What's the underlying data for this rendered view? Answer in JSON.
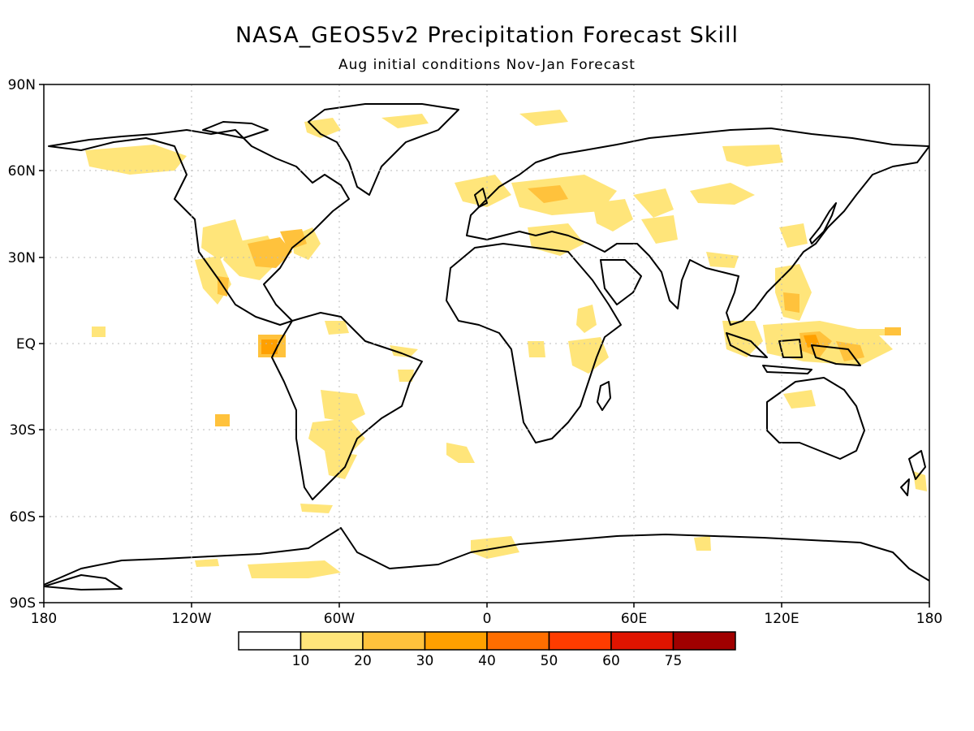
{
  "title": "NASA_GEOS5v2 Precipitation Forecast Skill",
  "subtitle": "Aug initial conditions   Nov-Jan Forecast",
  "lat_labels": [
    "90N",
    "60N",
    "30N",
    "EQ",
    "30S",
    "60S",
    "90S"
  ],
  "lon_labels": [
    "180",
    "120W",
    "60W",
    "0",
    "60E",
    "120E",
    "180"
  ],
  "colorbar": {
    "colors": [
      "#ffffff",
      "#ffe57a",
      "#ffc23c",
      "#ffa000",
      "#ff6e00",
      "#ff3c00",
      "#e01400",
      "#a00000"
    ],
    "tick_labels": [
      "10",
      "20",
      "30",
      "40",
      "50",
      "60",
      "75"
    ]
  }
}
